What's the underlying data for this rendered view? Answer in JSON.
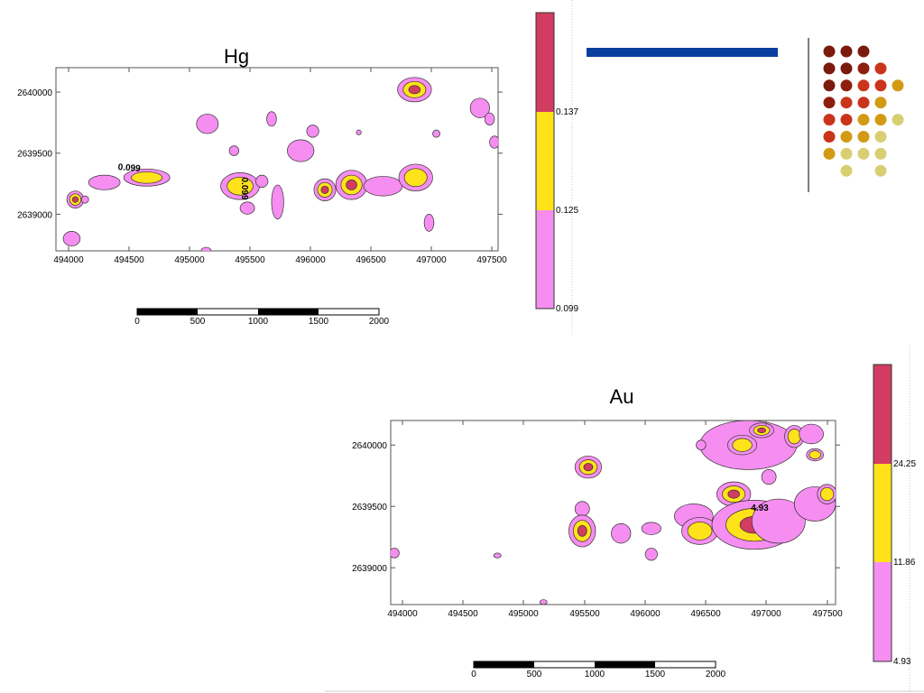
{
  "colors": {
    "low": "#f58ef0",
    "mid": "#ffe21a",
    "high": "#d23c62",
    "contour": "#333333",
    "banner": "#0a3fa0"
  },
  "hg": {
    "title": "Hg",
    "contour_labels": [
      "0.099",
      "0.099"
    ]
  },
  "au": {
    "title": "Au",
    "contour_labels": [
      "4.93"
    ]
  },
  "chart_data": [
    {
      "type": "heatmap",
      "title": "Hg",
      "xlim": [
        493900,
        497550
      ],
      "ylim": [
        2638700,
        2640200
      ],
      "x_ticks": [
        "494000",
        "494500",
        "495000",
        "495500",
        "496000",
        "496500",
        "497000",
        "497500"
      ],
      "y_ticks": [
        "2640000",
        "2639500",
        "2639000"
      ],
      "legend": {
        "breaks": [
          "0.099",
          "0.125",
          "0.137"
        ],
        "classes": [
          {
            "range": [
              0.099,
              0.125
            ],
            "color": "#f58ef0"
          },
          {
            "range": [
              0.125,
              0.137
            ],
            "color": "#ffe21a"
          },
          {
            "range": [
              0.137,
              null
            ],
            "color": "#d23c62"
          }
        ]
      },
      "scale_bar": {
        "ticks": [
          "0",
          "500",
          "1000",
          "1500",
          "2000"
        ]
      },
      "anomalies": [
        {
          "x": 494060,
          "y": 2639120,
          "rx": 70,
          "ry": 70,
          "level": 3
        },
        {
          "x": 494030,
          "y": 2638800,
          "rx": 70,
          "ry": 60,
          "level": 1
        },
        {
          "x": 494140,
          "y": 2639120,
          "rx": 30,
          "ry": 30,
          "level": 1
        },
        {
          "x": 494300,
          "y": 2639260,
          "rx": 130,
          "ry": 60,
          "level": 1
        },
        {
          "x": 494650,
          "y": 2639300,
          "rx": 190,
          "ry": 70,
          "level": 2
        },
        {
          "x": 495150,
          "y": 2639740,
          "rx": 90,
          "ry": 80,
          "level": 1
        },
        {
          "x": 495370,
          "y": 2639520,
          "rx": 40,
          "ry": 40,
          "level": 1
        },
        {
          "x": 495420,
          "y": 2639230,
          "rx": 160,
          "ry": 110,
          "level": 2
        },
        {
          "x": 495480,
          "y": 2639050,
          "rx": 60,
          "ry": 50,
          "level": 1
        },
        {
          "x": 495600,
          "y": 2639270,
          "rx": 50,
          "ry": 50,
          "level": 1
        },
        {
          "x": 495730,
          "y": 2639100,
          "rx": 50,
          "ry": 140,
          "level": 1
        },
        {
          "x": 495680,
          "y": 2639780,
          "rx": 40,
          "ry": 60,
          "level": 1
        },
        {
          "x": 495920,
          "y": 2639520,
          "rx": 110,
          "ry": 90,
          "level": 1
        },
        {
          "x": 496020,
          "y": 2639680,
          "rx": 50,
          "ry": 50,
          "level": 1
        },
        {
          "x": 496120,
          "y": 2639200,
          "rx": 90,
          "ry": 90,
          "level": 3
        },
        {
          "x": 496340,
          "y": 2639240,
          "rx": 130,
          "ry": 120,
          "level": 3
        },
        {
          "x": 496600,
          "y": 2639230,
          "rx": 160,
          "ry": 80,
          "level": 1
        },
        {
          "x": 496870,
          "y": 2639300,
          "rx": 140,
          "ry": 110,
          "level": 2
        },
        {
          "x": 496860,
          "y": 2640020,
          "rx": 140,
          "ry": 100,
          "level": 3
        },
        {
          "x": 497040,
          "y": 2639660,
          "rx": 30,
          "ry": 30,
          "level": 1
        },
        {
          "x": 496980,
          "y": 2638930,
          "rx": 40,
          "ry": 70,
          "level": 1
        },
        {
          "x": 497400,
          "y": 2639870,
          "rx": 80,
          "ry": 80,
          "level": 1
        },
        {
          "x": 497480,
          "y": 2639780,
          "rx": 40,
          "ry": 50,
          "level": 1
        },
        {
          "x": 497520,
          "y": 2639590,
          "rx": 40,
          "ry": 50,
          "level": 1
        },
        {
          "x": 496400,
          "y": 2639670,
          "rx": 20,
          "ry": 20,
          "level": 1
        },
        {
          "x": 495140,
          "y": 2638700,
          "rx": 40,
          "ry": 30,
          "level": 1
        }
      ]
    },
    {
      "type": "heatmap",
      "title": "Au",
      "xlim": [
        493900,
        497570
      ],
      "ylim": [
        2638700,
        2640200
      ],
      "x_ticks": [
        "494000",
        "494500",
        "495000",
        "495500",
        "496000",
        "496500",
        "497000",
        "497500"
      ],
      "y_ticks": [
        "2640000",
        "2639500",
        "2639000"
      ],
      "legend": {
        "breaks": [
          "4.93",
          "11.86",
          "24.25"
        ],
        "classes": [
          {
            "range": [
              4.93,
              11.86
            ],
            "color": "#f58ef0"
          },
          {
            "range": [
              11.86,
              24.25
            ],
            "color": "#ffe21a"
          },
          {
            "range": [
              24.25,
              null
            ],
            "color": "#d23c62"
          }
        ]
      },
      "scale_bar": {
        "ticks": [
          "0",
          "500",
          "1000",
          "1500",
          "2000"
        ]
      },
      "anomalies": [
        {
          "x": 493930,
          "y": 2639120,
          "rx": 40,
          "ry": 40,
          "level": 1
        },
        {
          "x": 494780,
          "y": 2639100,
          "rx": 30,
          "ry": 20,
          "level": 1
        },
        {
          "x": 495530,
          "y": 2639820,
          "rx": 110,
          "ry": 90,
          "level": 3
        },
        {
          "x": 495480,
          "y": 2639480,
          "rx": 60,
          "ry": 60,
          "level": 1
        },
        {
          "x": 495480,
          "y": 2639300,
          "rx": 110,
          "ry": 130,
          "level": 3
        },
        {
          "x": 495800,
          "y": 2639280,
          "rx": 80,
          "ry": 80,
          "level": 1
        },
        {
          "x": 496050,
          "y": 2639320,
          "rx": 80,
          "ry": 50,
          "level": 1
        },
        {
          "x": 496050,
          "y": 2639110,
          "rx": 50,
          "ry": 50,
          "level": 1
        },
        {
          "x": 496400,
          "y": 2639420,
          "rx": 160,
          "ry": 100,
          "level": 1
        },
        {
          "x": 496450,
          "y": 2639300,
          "rx": 150,
          "ry": 110,
          "level": 2
        },
        {
          "x": 496730,
          "y": 2639600,
          "rx": 140,
          "ry": 100,
          "level": 3
        },
        {
          "x": 496900,
          "y": 2639350,
          "rx": 350,
          "ry": 200,
          "level": 3
        },
        {
          "x": 497100,
          "y": 2639380,
          "rx": 220,
          "ry": 180,
          "level": 1
        },
        {
          "x": 497400,
          "y": 2639520,
          "rx": 170,
          "ry": 140,
          "level": 1
        },
        {
          "x": 497500,
          "y": 2639600,
          "rx": 80,
          "ry": 80,
          "level": 2
        },
        {
          "x": 496850,
          "y": 2640000,
          "rx": 400,
          "ry": 200,
          "level": 1
        },
        {
          "x": 496800,
          "y": 2640000,
          "rx": 120,
          "ry": 80,
          "level": 2
        },
        {
          "x": 496960,
          "y": 2640120,
          "rx": 100,
          "ry": 60,
          "level": 3
        },
        {
          "x": 497230,
          "y": 2640070,
          "rx": 80,
          "ry": 90,
          "level": 2
        },
        {
          "x": 497370,
          "y": 2640090,
          "rx": 100,
          "ry": 80,
          "level": 1
        },
        {
          "x": 497400,
          "y": 2639920,
          "rx": 70,
          "ry": 50,
          "level": 2
        },
        {
          "x": 497020,
          "y": 2639740,
          "rx": 60,
          "ry": 60,
          "level": 1
        },
        {
          "x": 496460,
          "y": 2640000,
          "rx": 40,
          "ry": 40,
          "level": 1
        },
        {
          "x": 495160,
          "y": 2638720,
          "rx": 30,
          "ry": 20,
          "level": 1
        }
      ]
    }
  ]
}
